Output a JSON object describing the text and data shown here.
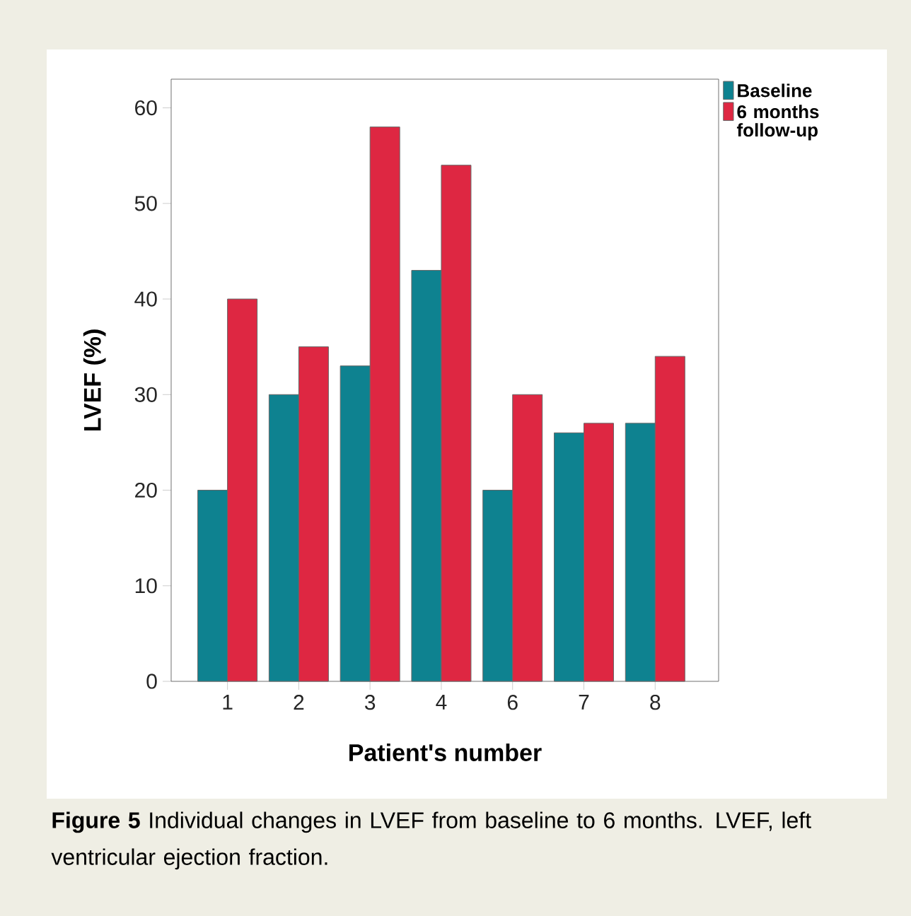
{
  "chart_data": {
    "type": "bar",
    "xlabel": "Patient's number",
    "ylabel": "LVEF (%)",
    "categories": [
      "1",
      "2",
      "3",
      "4",
      "6",
      "7",
      "8"
    ],
    "series": [
      {
        "name": "Baseline",
        "color": "#0e8290",
        "values": [
          20,
          30,
          33,
          43,
          20,
          26,
          27
        ]
      },
      {
        "name": "6 months follow-up",
        "color": "#de2742",
        "values": [
          40,
          35,
          58,
          54,
          30,
          27,
          34
        ]
      }
    ],
    "ylim": [
      0,
      63
    ],
    "yticks": [
      0,
      10,
      20,
      30,
      40,
      50,
      60
    ],
    "grid": false,
    "legend": "top right",
    "annotations": [
      "**Figure 5** Individual changes in LVEF from baseline to 6 months. LVEF, left ventricular ejection fraction."
    ]
  }
}
